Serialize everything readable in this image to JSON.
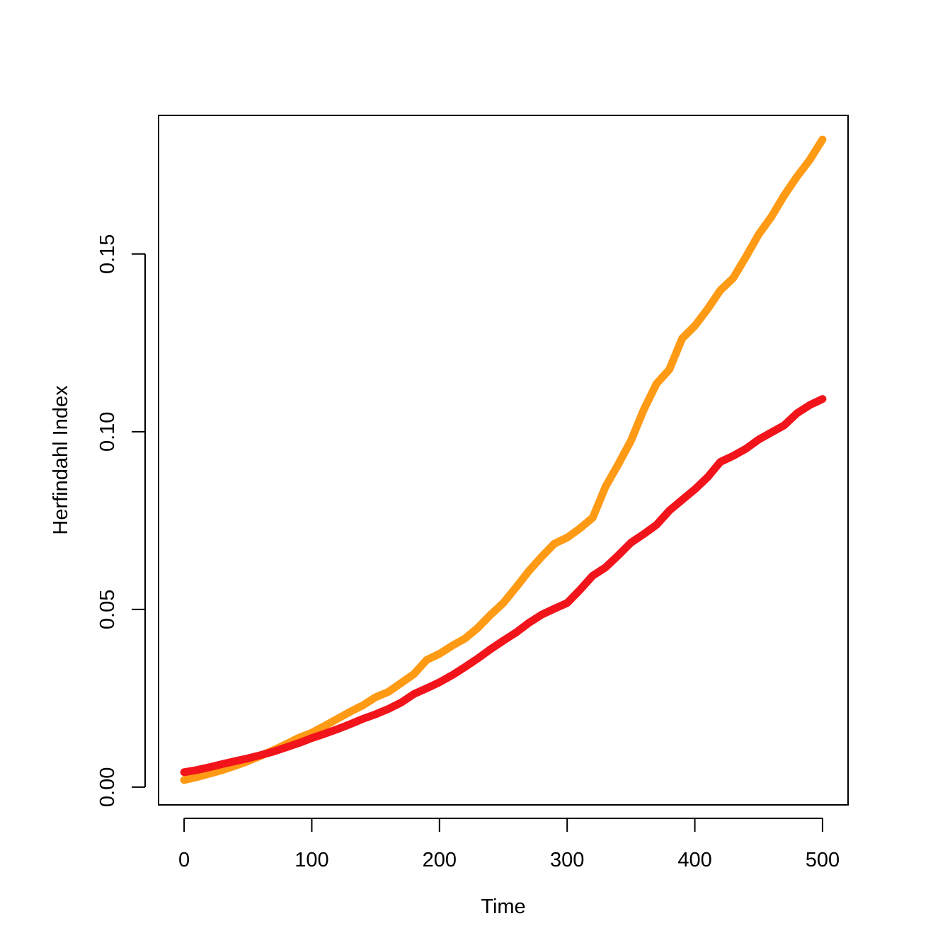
{
  "chart_data": {
    "type": "line",
    "title": "",
    "xlabel": "Time",
    "ylabel": "Herfindahl Index",
    "xlim": [
      -20,
      520
    ],
    "ylim": [
      -0.005,
      0.189
    ],
    "x_ticks": [
      0,
      100,
      200,
      300,
      400,
      500
    ],
    "x_tick_labels": [
      "0",
      "100",
      "200",
      "300",
      "400",
      "500"
    ],
    "y_ticks": [
      0.0,
      0.05,
      0.1,
      0.15
    ],
    "y_tick_labels": [
      "0.00",
      "0.05",
      "0.10",
      "0.15"
    ],
    "grid": false,
    "legend": "none",
    "series": [
      {
        "color": "#FF9A15",
        "x": [
          0,
          10,
          20,
          30,
          40,
          50,
          60,
          70,
          80,
          90,
          100,
          110,
          120,
          130,
          140,
          150,
          160,
          170,
          180,
          190,
          200,
          210,
          220,
          230,
          240,
          250,
          260,
          270,
          280,
          290,
          300,
          310,
          320,
          330,
          340,
          350,
          360,
          370,
          380,
          390,
          400,
          410,
          420,
          430,
          440,
          450,
          460,
          470,
          480,
          490,
          500
        ],
        "values": [
          0.002,
          0.0028,
          0.0038,
          0.0048,
          0.006,
          0.0073,
          0.0088,
          0.0104,
          0.0121,
          0.0139,
          0.0153,
          0.0172,
          0.0192,
          0.0212,
          0.023,
          0.0253,
          0.0268,
          0.0293,
          0.0318,
          0.0358,
          0.0375,
          0.0398,
          0.0418,
          0.0448,
          0.0485,
          0.0518,
          0.0562,
          0.0608,
          0.0648,
          0.0685,
          0.0702,
          0.0728,
          0.0758,
          0.0845,
          0.0908,
          0.0975,
          0.1062,
          0.1135,
          0.1175,
          0.1262,
          0.1298,
          0.1345,
          0.1398,
          0.1432,
          0.1492,
          0.1555,
          0.1605,
          0.1665,
          0.1718,
          0.1765,
          0.1822
        ]
      },
      {
        "color": "#F2141B",
        "x": [
          0,
          10,
          20,
          30,
          40,
          50,
          60,
          70,
          80,
          90,
          100,
          110,
          120,
          130,
          140,
          150,
          160,
          170,
          180,
          190,
          200,
          210,
          220,
          230,
          240,
          250,
          260,
          270,
          280,
          290,
          300,
          310,
          320,
          330,
          340,
          350,
          360,
          370,
          380,
          390,
          400,
          410,
          420,
          430,
          440,
          450,
          460,
          470,
          480,
          490,
          500
        ],
        "values": [
          0.0042,
          0.0048,
          0.0056,
          0.0065,
          0.0073,
          0.0081,
          0.009,
          0.01,
          0.0112,
          0.0124,
          0.0138,
          0.015,
          0.0163,
          0.0177,
          0.0192,
          0.0205,
          0.022,
          0.0238,
          0.0262,
          0.0278,
          0.0295,
          0.0315,
          0.0338,
          0.0362,
          0.0388,
          0.0412,
          0.0435,
          0.0462,
          0.0485,
          0.0502,
          0.0518,
          0.0555,
          0.0595,
          0.0618,
          0.0652,
          0.0688,
          0.0712,
          0.0738,
          0.0778,
          0.0808,
          0.0838,
          0.0872,
          0.0915,
          0.0932,
          0.0952,
          0.0978,
          0.0998,
          0.1018,
          0.1052,
          0.1075,
          0.1092
        ]
      }
    ]
  }
}
